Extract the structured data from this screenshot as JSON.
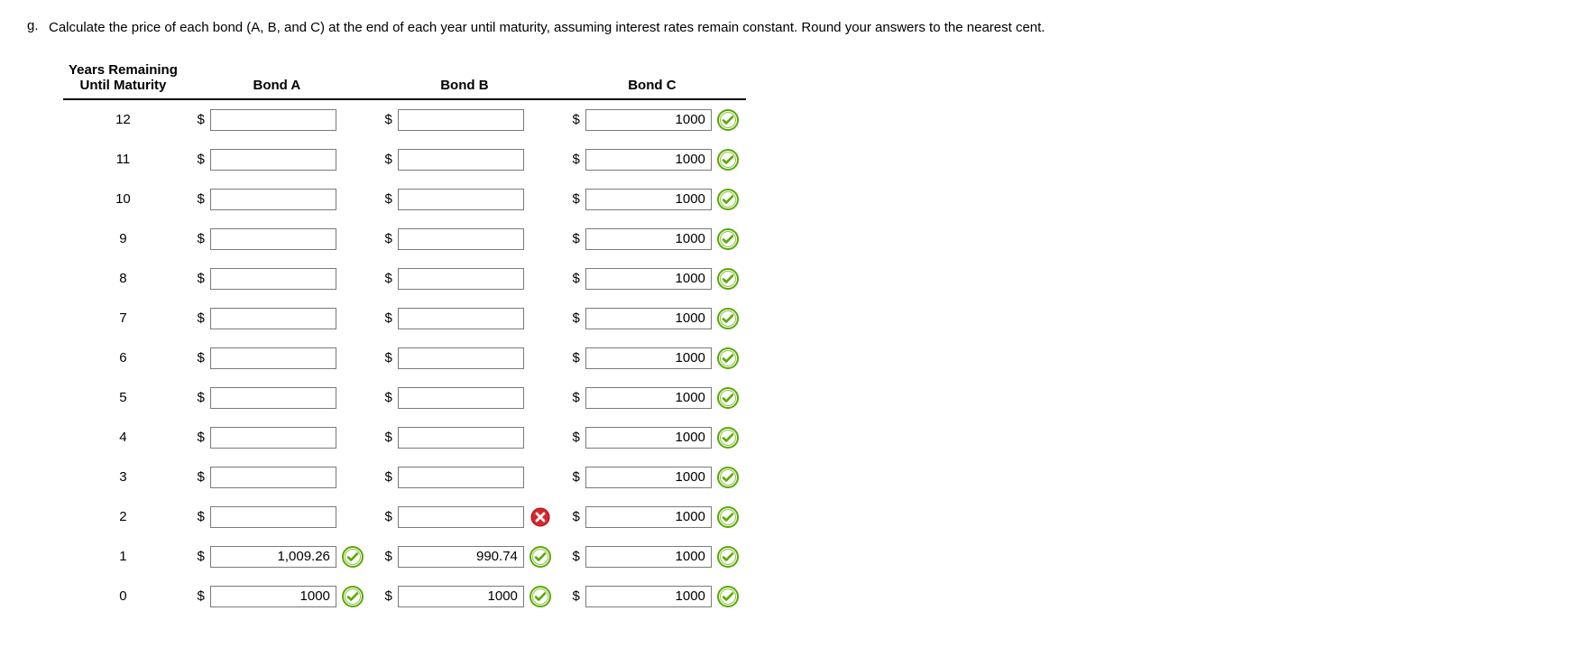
{
  "question": {
    "letter": "g.",
    "text": "Calculate the price of each bond (A, B, and C) at the end of each year until maturity, assuming interest rates remain constant. Round your answers to the nearest cent."
  },
  "table": {
    "header": {
      "years_line1": "Years Remaining",
      "years_line2": "Until Maturity",
      "bondA": "Bond A",
      "bondB": "Bond B",
      "bondC": "Bond C"
    },
    "currency_symbol": "$",
    "rows": [
      {
        "year": "12",
        "a": {
          "value": "",
          "status": "none"
        },
        "b": {
          "value": "",
          "status": "none"
        },
        "c": {
          "value": "1000",
          "status": "correct"
        }
      },
      {
        "year": "11",
        "a": {
          "value": "",
          "status": "none"
        },
        "b": {
          "value": "",
          "status": "none"
        },
        "c": {
          "value": "1000",
          "status": "correct"
        }
      },
      {
        "year": "10",
        "a": {
          "value": "",
          "status": "none"
        },
        "b": {
          "value": "",
          "status": "none"
        },
        "c": {
          "value": "1000",
          "status": "correct"
        }
      },
      {
        "year": "9",
        "a": {
          "value": "",
          "status": "none"
        },
        "b": {
          "value": "",
          "status": "none"
        },
        "c": {
          "value": "1000",
          "status": "correct"
        }
      },
      {
        "year": "8",
        "a": {
          "value": "",
          "status": "none"
        },
        "b": {
          "value": "",
          "status": "none"
        },
        "c": {
          "value": "1000",
          "status": "correct"
        }
      },
      {
        "year": "7",
        "a": {
          "value": "",
          "status": "none"
        },
        "b": {
          "value": "",
          "status": "none"
        },
        "c": {
          "value": "1000",
          "status": "correct"
        }
      },
      {
        "year": "6",
        "a": {
          "value": "",
          "status": "none"
        },
        "b": {
          "value": "",
          "status": "none"
        },
        "c": {
          "value": "1000",
          "status": "correct"
        }
      },
      {
        "year": "5",
        "a": {
          "value": "",
          "status": "none"
        },
        "b": {
          "value": "",
          "status": "none"
        },
        "c": {
          "value": "1000",
          "status": "correct"
        }
      },
      {
        "year": "4",
        "a": {
          "value": "",
          "status": "none"
        },
        "b": {
          "value": "",
          "status": "none"
        },
        "c": {
          "value": "1000",
          "status": "correct"
        }
      },
      {
        "year": "3",
        "a": {
          "value": "",
          "status": "none"
        },
        "b": {
          "value": "",
          "status": "none"
        },
        "c": {
          "value": "1000",
          "status": "correct"
        }
      },
      {
        "year": "2",
        "a": {
          "value": "",
          "status": "none"
        },
        "b": {
          "value": "",
          "status": "wrong"
        },
        "c": {
          "value": "1000",
          "status": "correct"
        }
      },
      {
        "year": "1",
        "a": {
          "value": "1,009.26",
          "status": "correct"
        },
        "b": {
          "value": "990.74",
          "status": "correct"
        },
        "c": {
          "value": "1000",
          "status": "correct"
        }
      },
      {
        "year": "0",
        "a": {
          "value": "1000",
          "status": "correct"
        },
        "b": {
          "value": "1000",
          "status": "correct"
        },
        "c": {
          "value": "1000",
          "status": "correct"
        }
      }
    ]
  },
  "colors": {
    "correct_outer": "#5aa700",
    "correct_inner": "#8cc63f",
    "wrong_fill": "#d7262c",
    "text": "#000000",
    "input_border": "#7a7a7a",
    "background": "#ffffff"
  }
}
